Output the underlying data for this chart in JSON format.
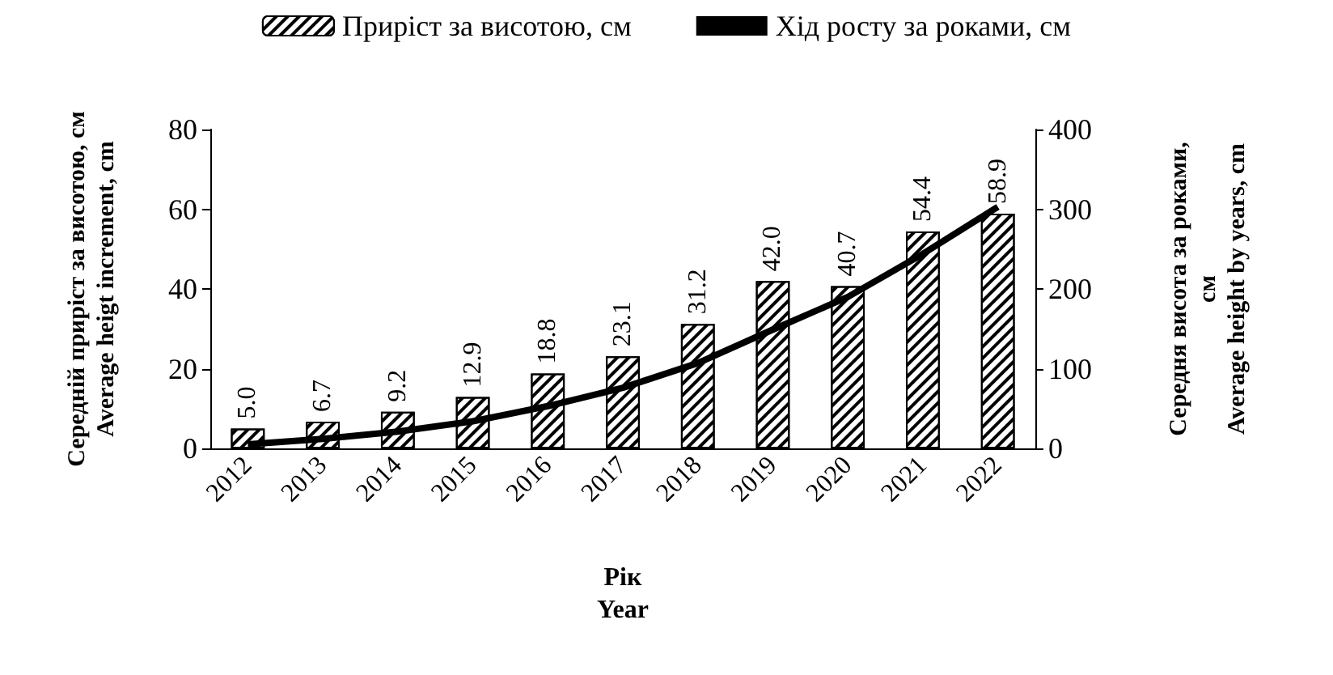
{
  "chart_data": {
    "type": "bar",
    "xlabel": "Рік\nYear",
    "ylabel": "Середній приріст за висотою, см\nAverage heigt increment, cm",
    "y2label": "Середня висота за роками,\nсм\nAverage height by years, cm",
    "categories": [
      "2012",
      "2013",
      "2014",
      "2015",
      "2016",
      "2017",
      "2018",
      "2019",
      "2020",
      "2021",
      "2022"
    ],
    "series": [
      {
        "name": "Приріст за висотою, см",
        "color": "#ffffff",
        "values": [
          5.0,
          6.7,
          9.2,
          12.9,
          18.8,
          23.1,
          31.2,
          42.0,
          40.7,
          54.4,
          58.9
        ],
        "value_labels": [
          "5.0",
          "6.7",
          "9.2",
          "12.9",
          "18.8",
          "23.1",
          "31.2",
          "42.0",
          "40.7",
          "54.4",
          "58.9"
        ]
      },
      {
        "name": "Хід росту за роками, см",
        "type": "line",
        "axis": "y2",
        "color": "#000000",
        "values": [
          5,
          12,
          21,
          34,
          53,
          76,
          107,
          149,
          190,
          244,
          303
        ]
      }
    ],
    "ylim": [
      0,
      80
    ],
    "yticks": [
      0,
      20,
      40,
      60,
      80
    ],
    "y2lim": [
      0,
      400
    ],
    "y2ticks": [
      0,
      100,
      200,
      300,
      400
    ],
    "grid": false,
    "legend": "top",
    "marker": "none",
    "line_style": "solid"
  }
}
